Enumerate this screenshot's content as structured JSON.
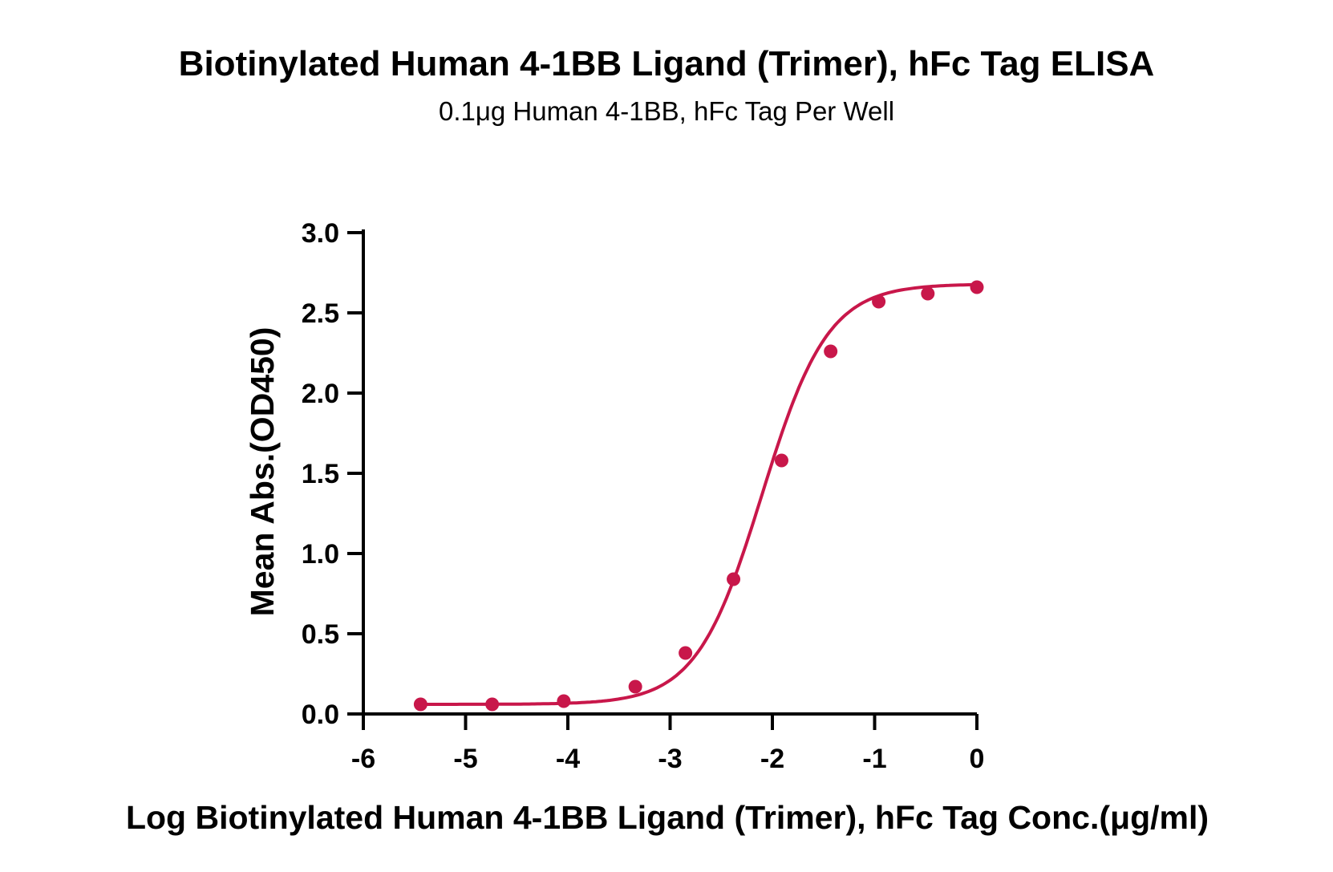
{
  "chart_data": {
    "type": "scatter",
    "title": "Biotinylated Human 4-1BB Ligand (Trimer), hFc Tag ELISA",
    "subtitle": "0.1μg Human 4-1BB, hFc Tag Per Well",
    "xlabel": "Log Biotinylated Human 4-1BB Ligand (Trimer), hFc Tag Conc.(μg/ml)",
    "ylabel": "Mean Abs.(OD450)",
    "xlim": [
      -6,
      0
    ],
    "ylim": [
      0,
      3.0
    ],
    "x_ticks": [
      "-6",
      "-5",
      "-4",
      "-3",
      "-2",
      "-1",
      "0"
    ],
    "y_ticks": [
      "0.0",
      "0.5",
      "1.0",
      "1.5",
      "2.0",
      "2.5",
      "3.0"
    ],
    "grid": false,
    "legend": "none",
    "series": [
      {
        "color": "#c8174a",
        "points": [
          {
            "x": -5.44,
            "y": 0.06
          },
          {
            "x": -4.74,
            "y": 0.06
          },
          {
            "x": -4.04,
            "y": 0.08
          },
          {
            "x": -3.34,
            "y": 0.17
          },
          {
            "x": -2.85,
            "y": 0.38
          },
          {
            "x": -2.38,
            "y": 0.84
          },
          {
            "x": -1.91,
            "y": 1.58
          },
          {
            "x": -1.43,
            "y": 2.26
          },
          {
            "x": -0.96,
            "y": 2.57
          },
          {
            "x": -0.48,
            "y": 2.62
          },
          {
            "x": 0.0,
            "y": 2.66
          }
        ],
        "fit": {
          "model": "4PL",
          "bottom": 0.06,
          "top": 2.68,
          "logEC50": -2.1,
          "hill": 1.35
        }
      }
    ]
  }
}
